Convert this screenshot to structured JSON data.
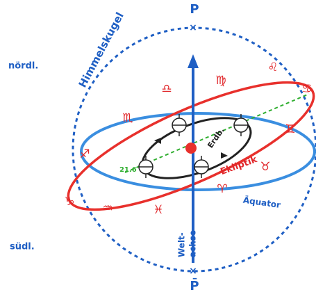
{
  "labels": {
    "pole_north": "P",
    "pole_south": "P̄",
    "sphere": "Himmelskugel",
    "north": "nördl.",
    "south": "südl.",
    "ecliptic": "Ekliptik",
    "equator": "Äquator",
    "axis": [
      "Welt-",
      "achse"
    ],
    "orbit": "Erdb.",
    "solstice": "21.6"
  },
  "zodiac": [
    "♎",
    "♍",
    "♌",
    "♋",
    "♊",
    "♉",
    "♈",
    "♓",
    "♒",
    "♑",
    "♐",
    "♏"
  ]
}
